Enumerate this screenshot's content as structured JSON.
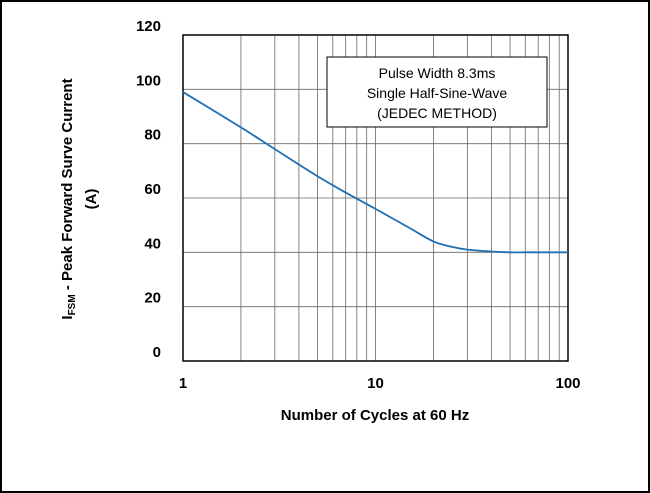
{
  "chart_data": {
    "type": "line",
    "xscale": "log",
    "xlim": [
      1,
      100
    ],
    "ylim": [
      0,
      120
    ],
    "x_ticks": [
      "1",
      "10",
      "100"
    ],
    "y_ticks": [
      "0",
      "20",
      "40",
      "60",
      "80",
      "100",
      "120"
    ],
    "xlabel": "Number of Cycles at 60 Hz",
    "ylabel_main": "I",
    "ylabel_sub": "FSM",
    "ylabel_rest": " - Peak Forward Surve Current",
    "ylabel_line2": "(A)",
    "grid": true,
    "annotation": [
      "Pulse Width 8.3ms",
      "Single Half-Sine-Wave",
      "(JEDEC METHOD)"
    ],
    "series": [
      {
        "color": "#1f6fb2",
        "x": [
          1,
          2,
          3,
          5,
          7,
          10,
          15,
          20,
          25,
          30,
          40,
          50,
          60,
          70,
          80,
          100
        ],
        "y": [
          99,
          86,
          78,
          68,
          62,
          56,
          49,
          44,
          42,
          41,
          40.3,
          40,
          40,
          40,
          40,
          40
        ]
      }
    ]
  }
}
